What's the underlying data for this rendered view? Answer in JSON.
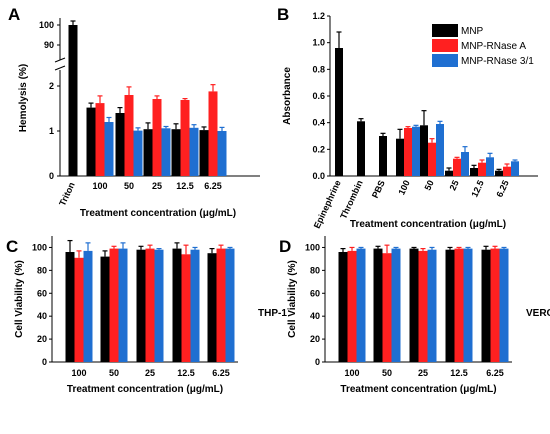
{
  "colors": {
    "MNP": "#000000",
    "MNP-RNase A": "#ff2020",
    "MNP-RNase 3/1": "#1f6fd1"
  },
  "chart_data": [
    {
      "panel": "A",
      "type": "bar",
      "categories": [
        "Triton",
        "100",
        "50",
        "25",
        "12.5",
        "6.25"
      ],
      "xlabel": "Treatment concentration (μg/mL)",
      "ylabel": "Hemolysis (%)",
      "axis_break": true,
      "yticks_lower": [
        "0",
        "1",
        "2"
      ],
      "yticks_upper": [
        "90",
        "100"
      ],
      "series": [
        {
          "name": "MNP",
          "values": [
            100,
            1.52,
            1.4,
            1.04,
            1.04,
            1.02
          ],
          "errors": [
            2.0,
            0.1,
            0.12,
            0.14,
            0.12,
            0.07
          ]
        },
        {
          "name": "MNP-RNase A",
          "values": [
            null,
            1.62,
            1.8,
            1.71,
            1.69,
            1.88
          ],
          "errors": [
            null,
            0.16,
            0.18,
            0.07,
            0.03,
            0.15
          ]
        },
        {
          "name": "MNP-RNase 3/1",
          "values": [
            null,
            1.2,
            1.01,
            1.06,
            1.07,
            1.0
          ],
          "errors": [
            null,
            0.1,
            0.06,
            0.04,
            0.07,
            0.08
          ]
        }
      ]
    },
    {
      "panel": "B",
      "type": "bar",
      "categories": [
        "Epinephrine",
        "Thrombin",
        "PBS",
        "100",
        "50",
        "25",
        "12.5",
        "6.25"
      ],
      "xlabel": "Treatment concentration (μg/mL)",
      "ylabel": "Absorbance",
      "ylim": [
        0,
        1.2
      ],
      "yticks": [
        "0.0",
        "0.2",
        "0.4",
        "0.6",
        "0.8",
        "1.0",
        "1.2"
      ],
      "legend": [
        "MNP",
        "MNP-RNase A",
        "MNP-RNase 3/1"
      ],
      "legend_position": "top-right",
      "series": [
        {
          "name": "MNP",
          "values": [
            0.96,
            0.41,
            0.3,
            0.28,
            0.38,
            0.04,
            0.06,
            0.04
          ],
          "errors": [
            0.12,
            0.02,
            0.02,
            0.07,
            0.11,
            0.02,
            0.02,
            0.01
          ]
        },
        {
          "name": "MNP-RNase A",
          "values": [
            null,
            null,
            null,
            0.36,
            0.25,
            0.13,
            0.1,
            0.07
          ],
          "errors": [
            null,
            null,
            null,
            0.01,
            0.03,
            0.01,
            0.02,
            0.02
          ]
        },
        {
          "name": "MNP-RNase 3/1",
          "values": [
            null,
            null,
            null,
            0.37,
            0.39,
            0.18,
            0.14,
            0.11
          ],
          "errors": [
            null,
            null,
            null,
            0.01,
            0.02,
            0.04,
            0.03,
            0.01
          ]
        }
      ]
    },
    {
      "panel": "C",
      "type": "bar",
      "categories": [
        "100",
        "50",
        "25",
        "12.5",
        "6.25"
      ],
      "xlabel": "Treatment concentration (μg/mL)",
      "ylabel": "Cell Viability (%)",
      "ylim": [
        0,
        110
      ],
      "yticks": [
        "0",
        "20",
        "40",
        "60",
        "80",
        "100"
      ],
      "annotation": "THP-1",
      "series": [
        {
          "name": "MNP",
          "values": [
            96,
            92,
            98,
            99,
            95
          ],
          "errors": [
            10,
            5,
            3,
            5,
            4
          ]
        },
        {
          "name": "MNP-RNase A",
          "values": [
            91,
            99,
            99,
            94,
            99
          ],
          "errors": [
            6,
            2,
            3,
            8,
            3
          ]
        },
        {
          "name": "MNP-RNase 3/1",
          "values": [
            97,
            99,
            98,
            98,
            99
          ],
          "errors": [
            7,
            5,
            1,
            2,
            1
          ]
        }
      ]
    },
    {
      "panel": "D",
      "type": "bar",
      "categories": [
        "100",
        "50",
        "25",
        "12.5",
        "6.25"
      ],
      "xlabel": "Treatment concentration (μg/mL)",
      "ylabel": "Cell Viability (%)",
      "ylim": [
        0,
        110
      ],
      "yticks": [
        "0",
        "20",
        "40",
        "60",
        "80",
        "100"
      ],
      "annotation": "VERO",
      "series": [
        {
          "name": "MNP",
          "values": [
            96,
            99,
            99,
            98,
            98
          ],
          "errors": [
            3,
            2,
            1,
            2,
            3
          ]
        },
        {
          "name": "MNP-RNase A",
          "values": [
            97,
            95,
            97,
            99,
            99
          ],
          "errors": [
            3,
            7,
            2,
            1,
            2
          ]
        },
        {
          "name": "MNP-RNase 3/1",
          "values": [
            99,
            99,
            98,
            99,
            99
          ],
          "errors": [
            1,
            1,
            2,
            1,
            1
          ]
        }
      ]
    }
  ]
}
